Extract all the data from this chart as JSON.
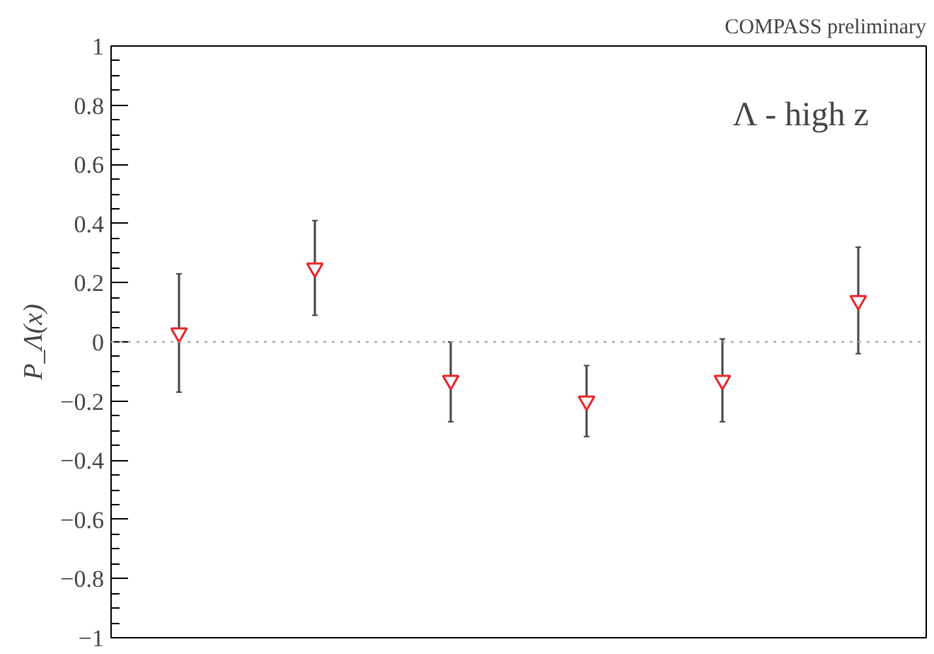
{
  "chart_data": {
    "type": "scatter",
    "ylabel": "P_Λ(x)",
    "categories": [
      null,
      null,
      null,
      null,
      null,
      null
    ],
    "series": [
      {
        "color": "#e8262a",
        "values": [
          0.03,
          0.25,
          -0.13,
          -0.2,
          -0.13,
          0.14
        ],
        "errors": [
          [
            -0.17,
            0.23
          ],
          [
            0.09,
            0.41
          ],
          [
            -0.27,
            0.0
          ],
          [
            -0.32,
            -0.08
          ],
          [
            -0.27,
            0.01
          ],
          [
            -0.04,
            0.32
          ]
        ]
      }
    ],
    "marker": "triangle",
    "ylim": [
      -1,
      1
    ],
    "yticks": [
      {
        "value": -1,
        "label": "−1"
      },
      {
        "value": -0.8,
        "label": "−0.8"
      },
      {
        "value": -0.6,
        "label": "−0.6"
      },
      {
        "value": -0.4,
        "label": "−0.4"
      },
      {
        "value": -0.2,
        "label": "−0.2"
      },
      0,
      0.2,
      0.4,
      0.6,
      0.8,
      1
    ],
    "ref_lines": [
      {
        "axis": "y",
        "value": 0,
        "color": "#aaaaaa",
        "line_style": "dotted"
      }
    ],
    "annotations": [
      "COMPASS preliminary",
      "Λ - high z"
    ],
    "grid": false
  }
}
